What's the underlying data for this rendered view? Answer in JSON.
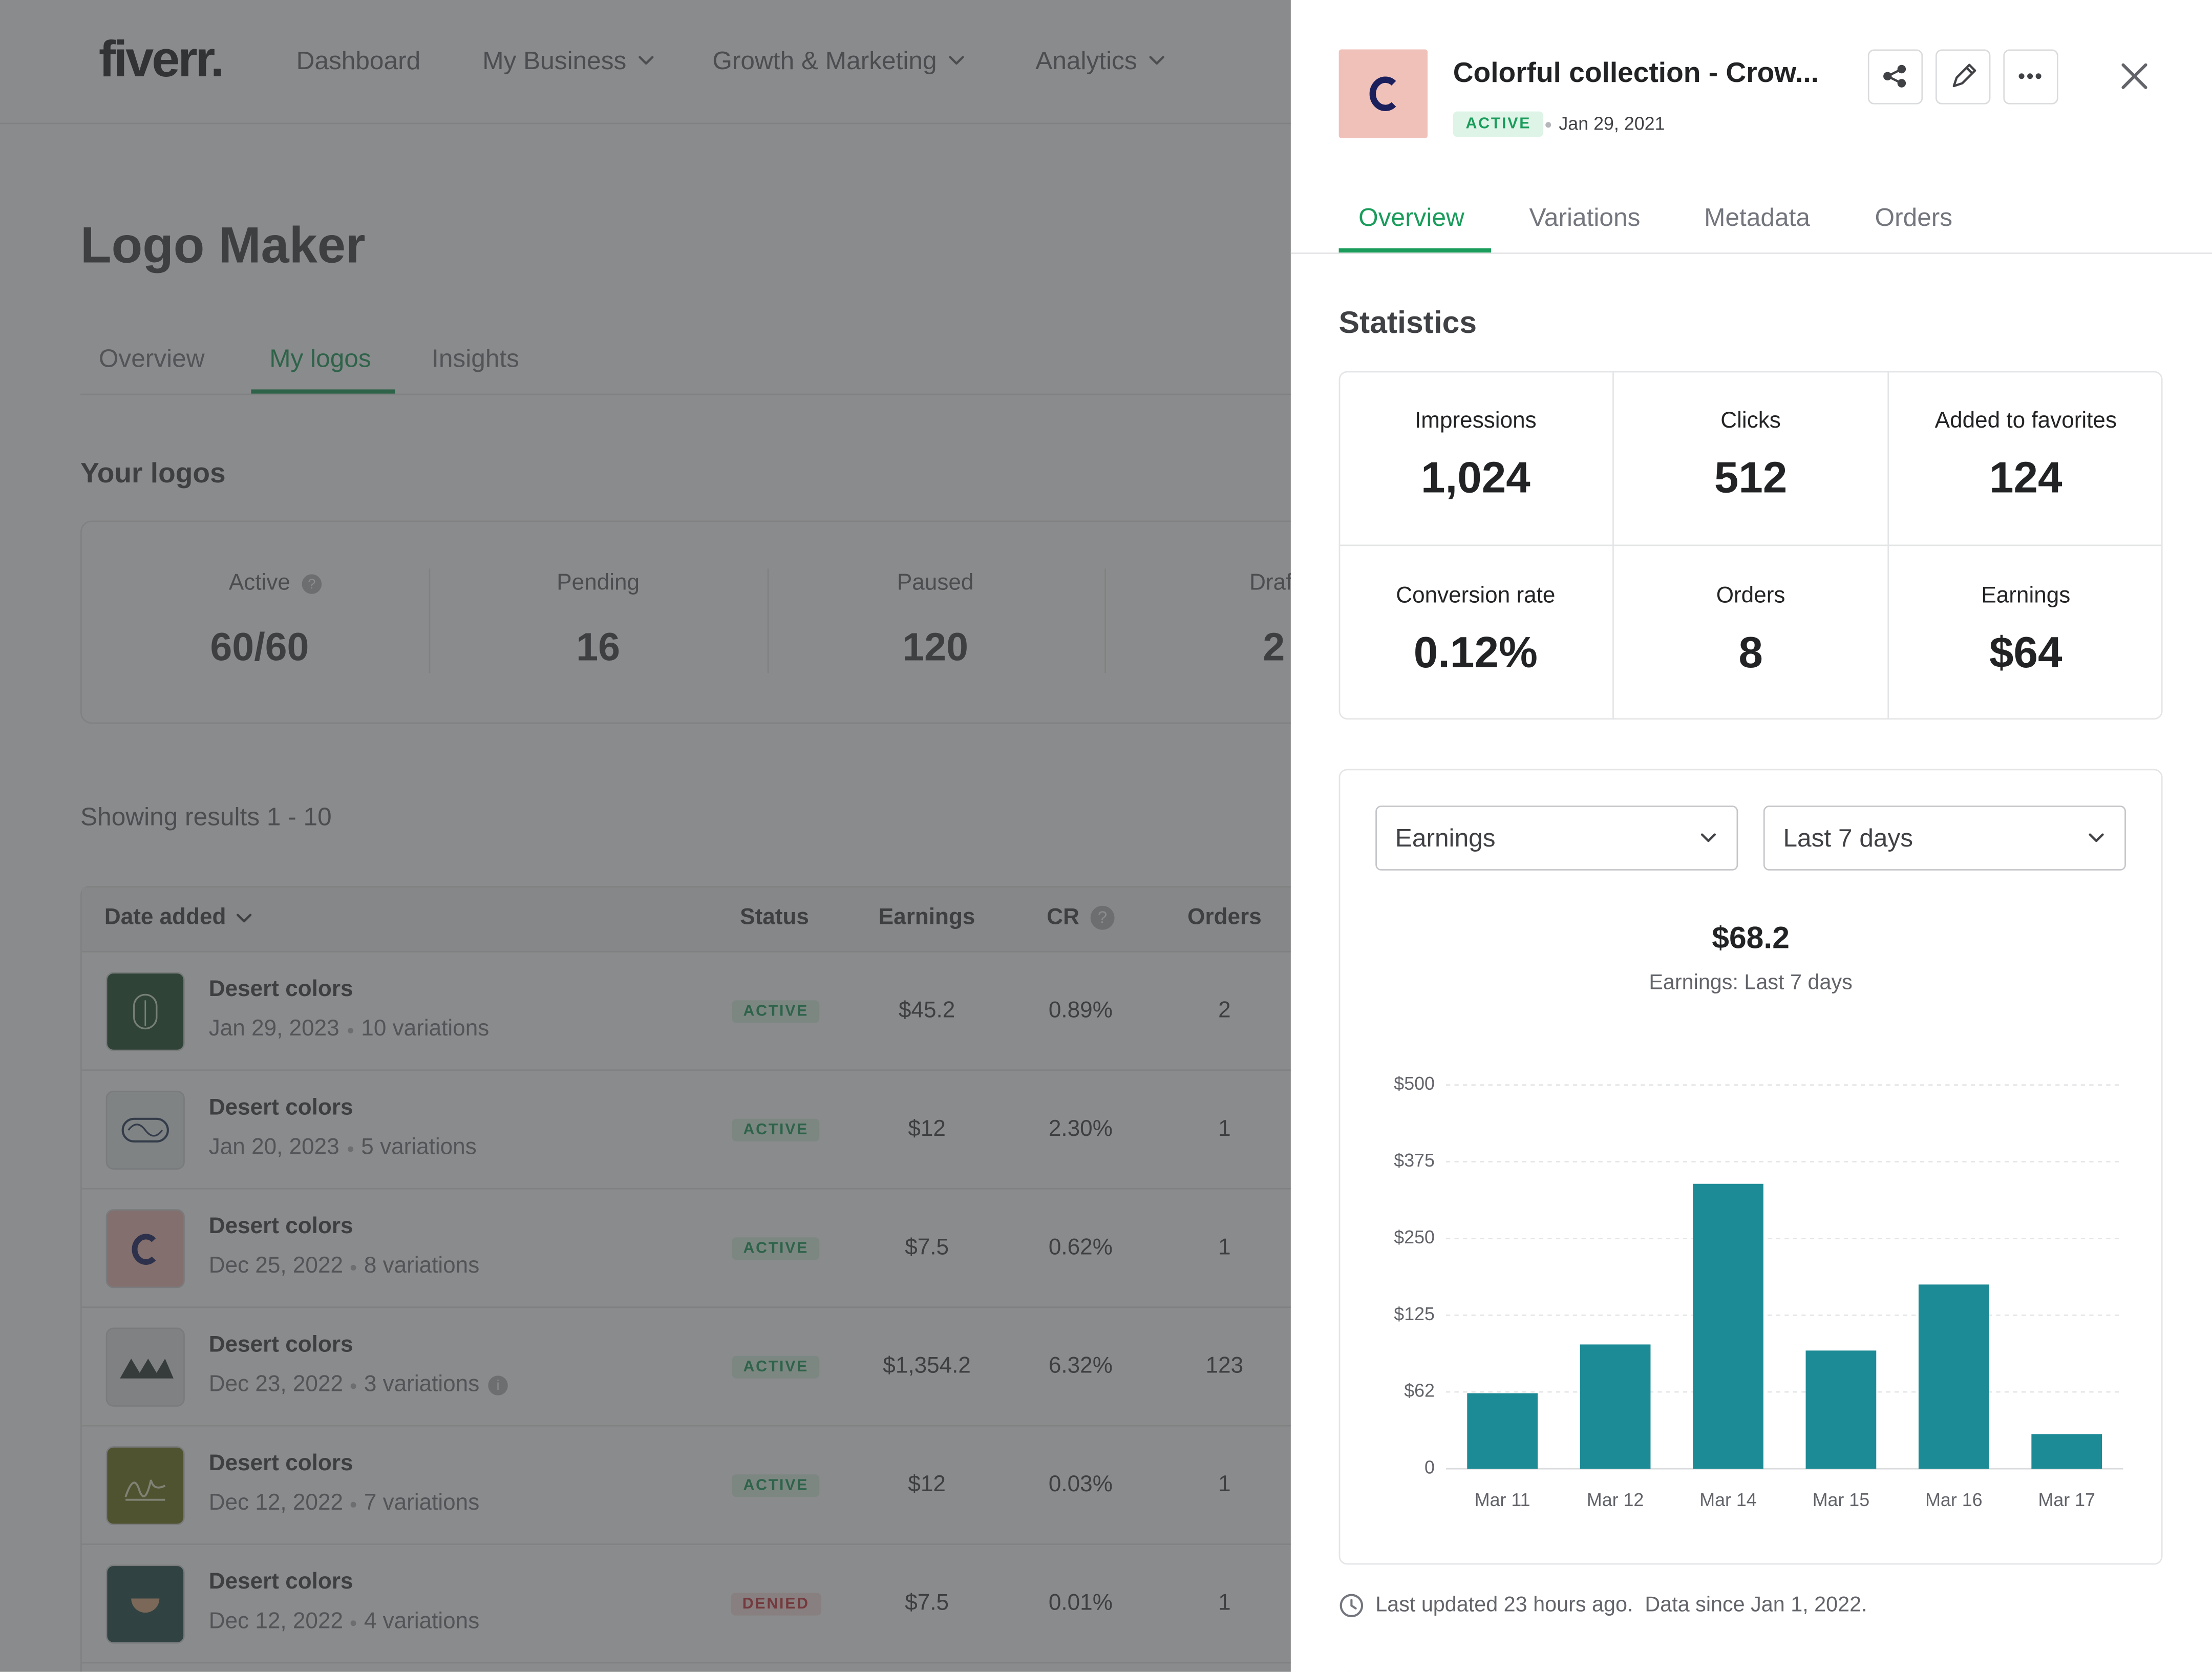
{
  "nav": {
    "logo": "fiverr.",
    "items": [
      "Dashboard",
      "My Business",
      "Growth & Marketing",
      "Analytics"
    ]
  },
  "page": {
    "title": "Logo Maker",
    "tabs": [
      "Overview",
      "My logos",
      "Insights"
    ],
    "section": "Your logos",
    "summary": [
      {
        "label": "Active",
        "value": "60/60"
      },
      {
        "label": "Pending",
        "value": "16"
      },
      {
        "label": "Paused",
        "value": "120"
      },
      {
        "label": "Draft",
        "value": "2"
      }
    ],
    "results": "Showing results 1 - 10",
    "table": {
      "columns": [
        "Date added",
        "Status",
        "Earnings",
        "CR",
        "Orders"
      ],
      "rows": [
        {
          "name": "Desert colors",
          "date": "Jan 29, 2023",
          "variations": "10 variations",
          "status": "ACTIVE",
          "earnings": "$45.2",
          "cr": "0.89%",
          "orders": "2"
        },
        {
          "name": "Desert colors",
          "date": "Jan 20, 2023",
          "variations": "5 variations",
          "status": "ACTIVE",
          "earnings": "$12",
          "cr": "2.30%",
          "orders": "1"
        },
        {
          "name": "Desert colors",
          "date": "Dec 25, 2022",
          "variations": "8 variations",
          "status": "ACTIVE",
          "earnings": "$7.5",
          "cr": "0.62%",
          "orders": "1"
        },
        {
          "name": "Desert colors",
          "date": "Dec 23, 2022",
          "variations": "3 variations",
          "status": "ACTIVE",
          "earnings": "$1,354.2",
          "cr": "6.32%",
          "orders": "123"
        },
        {
          "name": "Desert colors",
          "date": "Dec 12, 2022",
          "variations": "7 variations",
          "status": "ACTIVE",
          "earnings": "$12",
          "cr": "0.03%",
          "orders": "1"
        },
        {
          "name": "Desert colors",
          "date": "Dec 12, 2022",
          "variations": "4 variations",
          "status": "DENIED",
          "earnings": "$7.5",
          "cr": "0.01%",
          "orders": "1"
        }
      ]
    }
  },
  "panel": {
    "title": "Colorful collection - Crow...",
    "status": "ACTIVE",
    "date": "Jan 29, 2021",
    "tabs": [
      "Overview",
      "Variations",
      "Metadata",
      "Orders"
    ],
    "stats_title": "Statistics",
    "stats": [
      {
        "label": "Impressions",
        "value": "1,024"
      },
      {
        "label": "Clicks",
        "value": "512"
      },
      {
        "label": "Added to favorites",
        "value": "124"
      },
      {
        "label": "Conversion rate",
        "value": "0.12%"
      },
      {
        "label": "Orders",
        "value": "8"
      },
      {
        "label": "Earnings",
        "value": "$64"
      }
    ],
    "metric": "Earnings",
    "period": "Last 7 days",
    "total": "$68.2",
    "total_label": "Earnings: Last 7 days",
    "footer": "Last updated 23 hours ago.  Data since Jan 1, 2022."
  },
  "chart_data": {
    "type": "bar",
    "categories": [
      "Mar 11",
      "Mar 12",
      "Mar 14",
      "Mar 15",
      "Mar 16",
      "Mar 17"
    ],
    "values": [
      61,
      101,
      339,
      96,
      175,
      28
    ],
    "color": "#1d8b96",
    "ylim": [
      0,
      500
    ],
    "yticks": [
      0,
      {
        "value": 62,
        "label": "$62"
      },
      {
        "value": 125,
        "label": "$125"
      },
      {
        "value": 250,
        "label": "$250"
      },
      {
        "value": 375,
        "label": "$375"
      },
      {
        "value": 500,
        "label": "$500"
      }
    ],
    "grid": true
  }
}
